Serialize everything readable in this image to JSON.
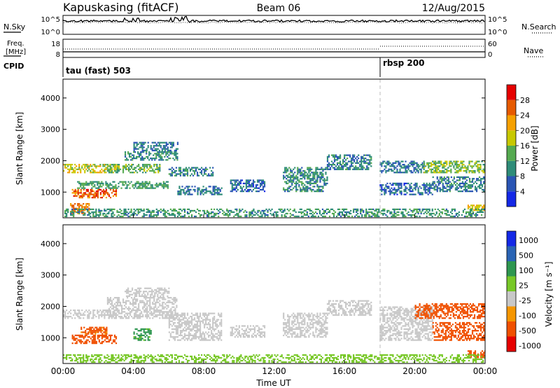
{
  "header": {
    "station": "Kapuskasing (fitACF)",
    "beam": "Beam 06",
    "date": "12/Aug/2015"
  },
  "side_labels": {
    "n_sky": "N.Sky",
    "n_search": "N.Search",
    "freq_line1": "Freq.",
    "freq_line2": "[MHz]",
    "nave": "Nave",
    "cpid": "CPID"
  },
  "noise_ticks_left": [
    "10^5",
    "10^0"
  ],
  "noise_ticks_right": [
    "10^5",
    "10^0"
  ],
  "freq_ticks_left": [
    "18",
    "8"
  ],
  "freq_ticks_right": [
    "60",
    "0"
  ],
  "cpid_labels": [
    {
      "text": "tau (fast) 503",
      "start": 0
    },
    {
      "text": "rbsp 200",
      "start": 18
    }
  ],
  "power_colorbar": {
    "label": "Power [dB]",
    "ticks": [
      "4",
      "8",
      "12",
      "16",
      "20",
      "24",
      "28"
    ],
    "colors": [
      "#1428e6",
      "#2a55b4",
      "#2e8c78",
      "#55aa50",
      "#c8c800",
      "#f5a000",
      "#e65a00",
      "#e60000"
    ]
  },
  "velocity_colorbar": {
    "label": "Velocity [m s⁻¹]",
    "ticks": [
      "1000",
      "500",
      "100",
      "25",
      "-25",
      "-100",
      "-500",
      "-1000"
    ],
    "colors": [
      "#e60000",
      "#f05000",
      "#f59600",
      "#c8c8c8",
      "#78c828",
      "#2e9650",
      "#2a64b4",
      "#1428e6"
    ]
  },
  "chart_data": [
    {
      "type": "heatmap",
      "panel": "power",
      "ylabel": "Slant Range [km]",
      "xlabel": "",
      "x_range": [
        0,
        24
      ],
      "ylim": [
        180,
        4600
      ],
      "y_ticks": [
        "1000",
        "2000",
        "3000",
        "4000"
      ],
      "x_ticks": [
        "00:00",
        "04:00",
        "08:00",
        "12:00",
        "16:00",
        "20:00",
        "00:00"
      ],
      "regions": [
        {
          "t0": 0.0,
          "t1": 3.0,
          "r0": 1600,
          "r1": 1900,
          "v": 18
        },
        {
          "t0": 0.5,
          "t1": 3.0,
          "r0": 800,
          "r1": 1100,
          "v": 26
        },
        {
          "t0": 0.4,
          "t1": 1.5,
          "r0": 300,
          "r1": 650,
          "v": 24
        },
        {
          "t0": 2.5,
          "t1": 5.5,
          "r0": 1600,
          "r1": 1900,
          "v": 14
        },
        {
          "t0": 0.8,
          "t1": 6.0,
          "r0": 1100,
          "r1": 1350,
          "v": 12
        },
        {
          "t0": 3.5,
          "t1": 6.5,
          "r0": 2000,
          "r1": 2300,
          "v": 10
        },
        {
          "t0": 4.0,
          "t1": 6.5,
          "r0": 2300,
          "r1": 2600,
          "v": 8
        },
        {
          "t0": 6.0,
          "t1": 8.5,
          "r0": 1500,
          "r1": 1800,
          "v": 9
        },
        {
          "t0": 6.5,
          "t1": 9.0,
          "r0": 900,
          "r1": 1200,
          "v": 8
        },
        {
          "t0": 9.5,
          "t1": 11.5,
          "r0": 1000,
          "r1": 1400,
          "v": 7
        },
        {
          "t0": 12.5,
          "t1": 15.0,
          "r0": 1000,
          "r1": 1800,
          "v": 10
        },
        {
          "t0": 15.0,
          "t1": 17.5,
          "r0": 1700,
          "r1": 2200,
          "v": 9
        },
        {
          "t0": 18.0,
          "t1": 20.5,
          "r0": 1600,
          "r1": 2000,
          "v": 8
        },
        {
          "t0": 18.0,
          "t1": 21.0,
          "r0": 900,
          "r1": 1300,
          "v": 7
        },
        {
          "t0": 20.5,
          "t1": 24.0,
          "r0": 1600,
          "r1": 2000,
          "v": 15
        },
        {
          "t0": 21.0,
          "t1": 24.0,
          "r0": 1000,
          "r1": 1500,
          "v": 9
        },
        {
          "t0": 23.0,
          "t1": 24.0,
          "r0": 400,
          "r1": 600,
          "v": 20
        },
        {
          "t0": 0.0,
          "t1": 24.0,
          "r0": 200,
          "r1": 450,
          "v": 11
        }
      ]
    },
    {
      "type": "heatmap",
      "panel": "velocity",
      "ylabel": "Slant Range [km]",
      "xlabel": "Time UT",
      "x_range": [
        0,
        24
      ],
      "ylim": [
        180,
        4600
      ],
      "y_ticks": [
        "1000",
        "2000",
        "3000",
        "4000"
      ],
      "x_ticks": [
        "00:00",
        "04:00",
        "08:00",
        "12:00",
        "16:00",
        "20:00",
        "00:00"
      ],
      "regions": [
        {
          "t0": 0.0,
          "t1": 3.0,
          "r0": 1600,
          "r1": 1900,
          "v": 0
        },
        {
          "t0": 0.5,
          "t1": 3.0,
          "r0": 800,
          "r1": 1100,
          "v": -300
        },
        {
          "t0": 1.0,
          "t1": 2.5,
          "r0": 1100,
          "r1": 1350,
          "v": -150
        },
        {
          "t0": 2.5,
          "t1": 6.5,
          "r0": 1600,
          "r1": 2300,
          "v": 0
        },
        {
          "t0": 3.5,
          "t1": 6.0,
          "r0": 2300,
          "r1": 2600,
          "v": 0
        },
        {
          "t0": 4.0,
          "t1": 5.0,
          "r0": 900,
          "r1": 1300,
          "v": 150
        },
        {
          "t0": 6.0,
          "t1": 9.0,
          "r0": 900,
          "r1": 1800,
          "v": 0
        },
        {
          "t0": 9.5,
          "t1": 11.5,
          "r0": 1000,
          "r1": 1400,
          "v": 0
        },
        {
          "t0": 12.5,
          "t1": 15.0,
          "r0": 1000,
          "r1": 1800,
          "v": 0
        },
        {
          "t0": 15.0,
          "t1": 17.5,
          "r0": 1700,
          "r1": 2200,
          "v": 0
        },
        {
          "t0": 18.0,
          "t1": 21.0,
          "r0": 900,
          "r1": 2000,
          "v": 0
        },
        {
          "t0": 20.0,
          "t1": 24.0,
          "r0": 1600,
          "r1": 2100,
          "v": -200
        },
        {
          "t0": 21.0,
          "t1": 24.0,
          "r0": 900,
          "r1": 1500,
          "v": -300
        },
        {
          "t0": 23.0,
          "t1": 24.0,
          "r0": 350,
          "r1": 600,
          "v": -200
        },
        {
          "t0": 0.0,
          "t1": 24.0,
          "r0": 200,
          "r1": 450,
          "v": 60
        }
      ]
    }
  ]
}
